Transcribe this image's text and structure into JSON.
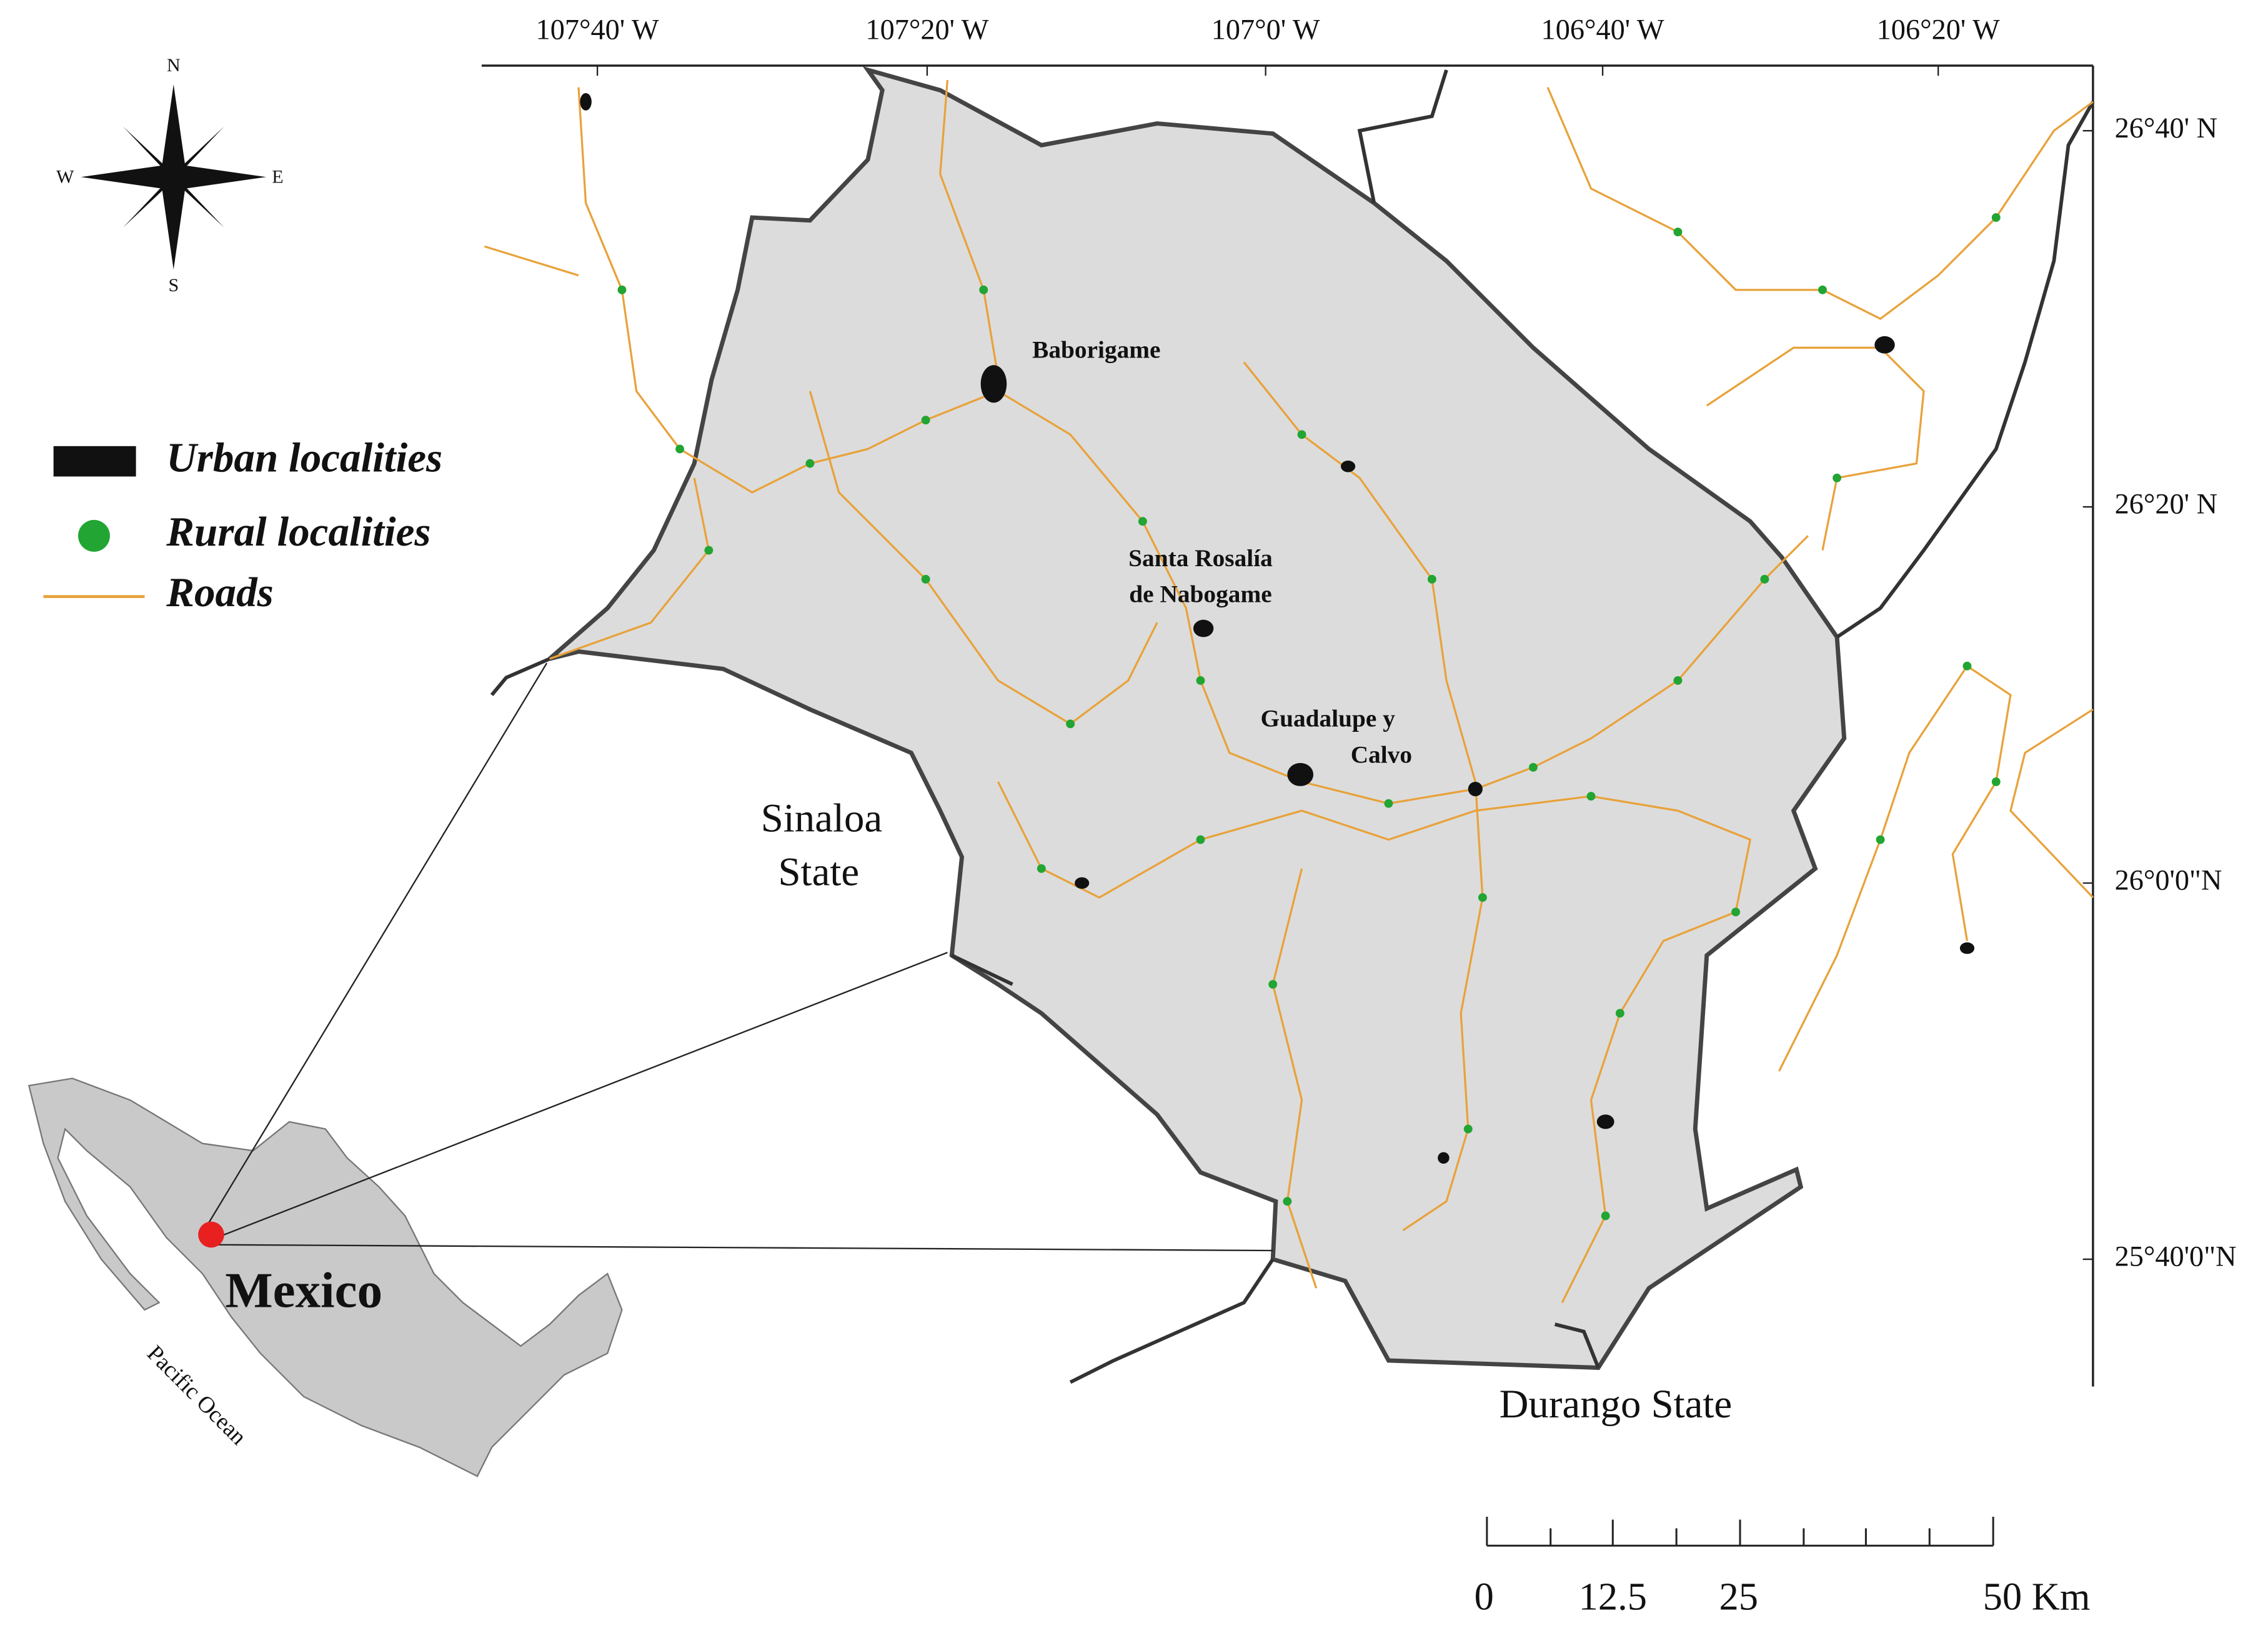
{
  "compass": {
    "north": "N",
    "east": "E",
    "south": "S",
    "west": "W"
  },
  "longitude_labels": [
    "107°40' W",
    "107°20' W",
    "107°0' W",
    "106°40' W",
    "106°20' W"
  ],
  "latitude_labels": [
    "26°40' N",
    "26°20' N",
    "26°0'0\"N",
    "25°40'0\"N"
  ],
  "legend": [
    {
      "label": "Urban localities"
    },
    {
      "label": "Rural localities"
    },
    {
      "label": "Roads"
    }
  ],
  "places": [
    {
      "lines": [
        "Baborigame"
      ]
    },
    {
      "lines": [
        "Santa Rosalía",
        "de Nabogame"
      ]
    },
    {
      "lines": [
        "Guadalupe y",
        "Calvo"
      ]
    }
  ],
  "regions": {
    "sinaloa": [
      "Sinaloa",
      "State"
    ],
    "durango": "Durango State"
  },
  "inset": {
    "country": "Mexico",
    "ocean": "Pacific Ocean"
  },
  "scale_bar": {
    "labels": [
      "0",
      "12.5",
      "25",
      "50 Km"
    ]
  }
}
